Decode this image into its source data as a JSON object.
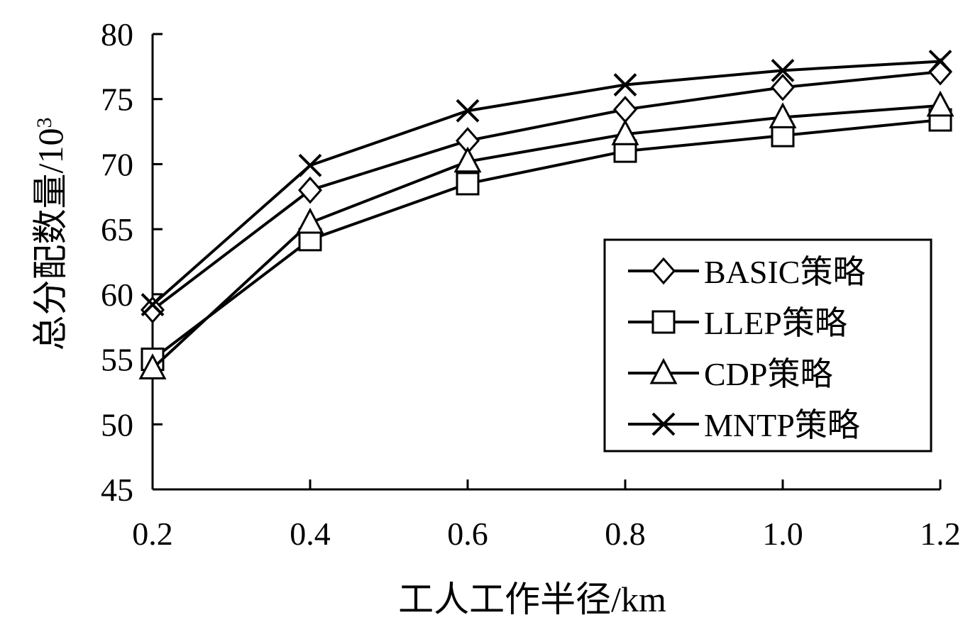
{
  "chart_data": {
    "type": "line",
    "title": "",
    "xlabel": "工人工作半径/km",
    "ylabel": "总分配数量/10",
    "ylabel_superscript": "3",
    "x": [
      0.2,
      0.4,
      0.6,
      0.8,
      1.0,
      1.2
    ],
    "x_tick_labels": [
      "0.2",
      "0.4",
      "0.6",
      "0.8",
      "1.0",
      "1.2"
    ],
    "y_tick_labels": [
      "45",
      "50",
      "55",
      "60",
      "65",
      "70",
      "75",
      "80"
    ],
    "ylim": [
      45,
      80
    ],
    "grid": false,
    "legend_position": "right",
    "series": [
      {
        "name": "BASIC策略",
        "marker": "diamond",
        "values": [
          58.8,
          68.0,
          71.8,
          74.2,
          75.9,
          77.1
        ]
      },
      {
        "name": "LLEP策略",
        "marker": "square",
        "values": [
          55.0,
          64.2,
          68.5,
          71.0,
          72.2,
          73.4
        ]
      },
      {
        "name": "CDP策略",
        "marker": "triangle",
        "values": [
          54.3,
          65.5,
          70.2,
          72.3,
          73.6,
          74.5
        ]
      },
      {
        "name": "MNTP策略",
        "marker": "x",
        "values": [
          59.2,
          69.9,
          74.1,
          76.1,
          77.2,
          77.9
        ]
      }
    ]
  }
}
